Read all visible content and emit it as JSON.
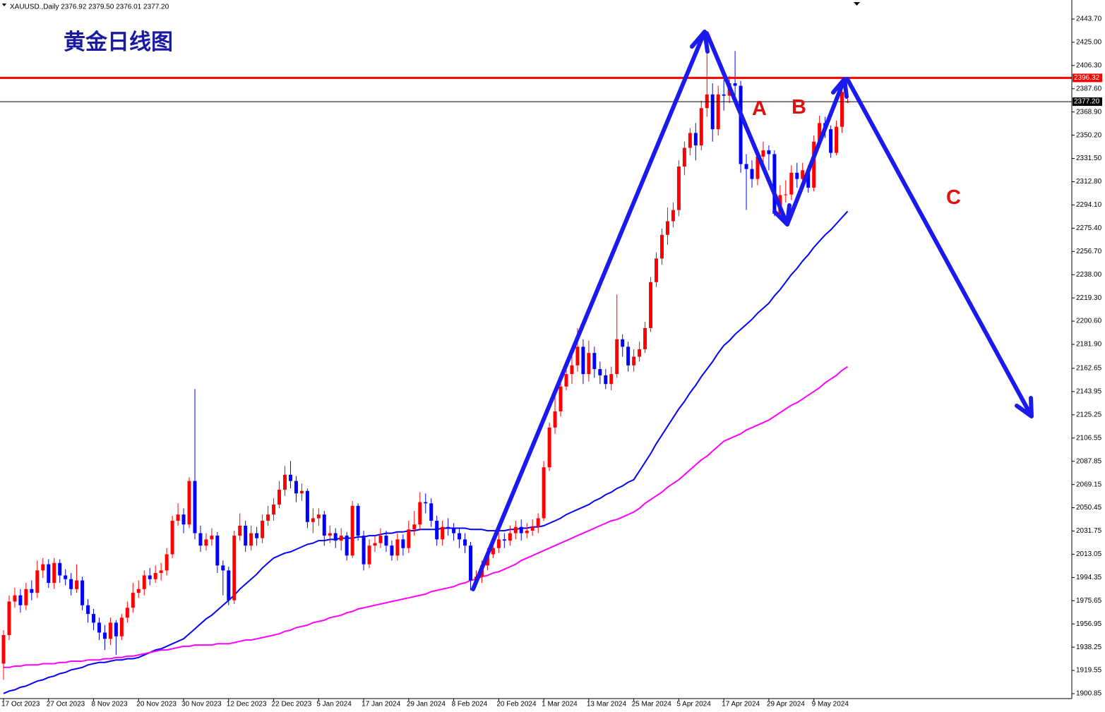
{
  "chart_data": {
    "type": "candlestick",
    "title": "黄金日线图",
    "header": "XAUUSD.,Daily  2376.92 2379.50 2376.01 2377.20",
    "annotations": [
      "A",
      "B",
      "C"
    ],
    "up_color": "#ff0000",
    "down_color": "#0000ff",
    "ylim": [
      1896.9,
      2459.0
    ],
    "yticks": [
      {
        "value": 2443.7,
        "label": "2443.70"
      },
      {
        "value": 2425,
        "label": "2425.00"
      },
      {
        "value": 2406.3,
        "label": "2406.30"
      },
      {
        "value": 2387.6,
        "label": "2387.60"
      },
      {
        "value": 2368.9,
        "label": "2368.90"
      },
      {
        "value": 2350.2,
        "label": "2350.20"
      },
      {
        "value": 2331.5,
        "label": "2331.50"
      },
      {
        "value": 2312.8,
        "label": "2312.80"
      },
      {
        "value": 2294.1,
        "label": "2294.10"
      },
      {
        "value": 2275.4,
        "label": "2275.40"
      },
      {
        "value": 2256.7,
        "label": "2256.70"
      },
      {
        "value": 2238,
        "label": "2238.00"
      },
      {
        "value": 2219.3,
        "label": "2219.30"
      },
      {
        "value": 2200.6,
        "label": "2200.60"
      },
      {
        "value": 2181.9,
        "label": "2181.90"
      },
      2162.65,
      2143.95,
      2125.25,
      2106.55,
      2087.85,
      2069.15,
      2050.45,
      2031.75,
      2013.05,
      1994.35,
      1975.65,
      1956.95,
      1938.25,
      1919.55,
      1900.85
    ],
    "levels": [
      {
        "value": 2396.32,
        "label": "2396.32",
        "color": "#ff0000",
        "weight": "bold"
      },
      {
        "value": 2377.2,
        "label": "2377.20",
        "color": "#000000",
        "weight": "normal"
      }
    ],
    "categories": [
      "17 Oct 2023",
      null,
      null,
      null,
      null,
      null,
      null,
      null,
      "27 Oct 2023",
      null,
      null,
      null,
      null,
      null,
      null,
      null,
      "8 Nov 2023",
      null,
      null,
      null,
      null,
      null,
      null,
      null,
      "20 Nov 2023",
      null,
      null,
      null,
      null,
      null,
      null,
      null,
      "30 Nov 2023",
      null,
      null,
      null,
      null,
      null,
      null,
      null,
      "12 Dec 2023",
      null,
      null,
      null,
      null,
      null,
      null,
      null,
      "22 Dec 2023",
      null,
      null,
      null,
      null,
      null,
      null,
      null,
      "5 Jan 2024",
      null,
      null,
      null,
      null,
      null,
      null,
      null,
      "17 Jan 2024",
      null,
      null,
      null,
      null,
      null,
      null,
      null,
      "29 Jan 2024",
      null,
      null,
      null,
      null,
      null,
      null,
      null,
      "8 Feb 2024",
      null,
      null,
      null,
      null,
      null,
      null,
      null,
      "20 Feb 2024",
      null,
      null,
      null,
      null,
      null,
      null,
      null,
      "1 Mar 2024",
      null,
      null,
      null,
      null,
      null,
      null,
      null,
      "13 Mar 2024",
      null,
      null,
      null,
      null,
      null,
      null,
      null,
      "25 Mar 2024",
      null,
      null,
      null,
      null,
      null,
      null,
      null,
      "5 Apr 2024",
      null,
      null,
      null,
      null,
      null,
      null,
      null,
      "17 Apr 2024",
      null,
      null,
      null,
      null,
      null,
      null,
      null,
      "29 Apr 2024",
      null,
      null,
      null,
      null,
      null,
      null,
      null,
      "9 May 2024",
      null,
      null,
      null,
      null,
      null,
      null
    ],
    "open": [
      1925,
      1948,
      1975,
      1980,
      1972,
      1985,
      1982,
      2000,
      2005,
      1990,
      2006,
      1996,
      1993,
      1985,
      1992,
      1972,
      1965,
      1958,
      1950,
      1945,
      1958,
      1947,
      1962,
      1970,
      1982,
      1985,
      1996,
      1993,
      1998,
      2000,
      2013,
      2040,
      2045,
      2037,
      2072,
      2030,
      2020,
      2025,
      2028,
      2004,
      2000,
      1976,
      2028,
      2036,
      2020,
      2030,
      2026,
      2040,
      2045,
      2053,
      2065,
      2077,
      2072,
      2062,
      2064,
      2039,
      2042,
      2045,
      2028,
      2030,
      2024,
      2028,
      2012,
      2052,
      2028,
      2005,
      2020,
      2022,
      2028,
      2020,
      2012,
      2025,
      2018,
      2033,
      2037,
      2055,
      2054,
      2040,
      2025,
      2035,
      2034,
      2030,
      2025,
      2020,
      1992,
      1995,
      2004,
      2013,
      2018,
      2025,
      2024,
      2030,
      2035,
      2030,
      2032,
      2035,
      2042,
      2083,
      2115,
      2128,
      2148,
      2158,
      2165,
      2180,
      2158,
      2175,
      2162,
      2157,
      2150,
      2158,
      2186,
      2180,
      2165,
      2172,
      2178,
      2195,
      2232,
      2251,
      2270,
      2281,
      2290,
      2325,
      2340,
      2352,
      2342,
      2372,
      2383,
      2355,
      2383,
      2382,
      2392,
      2390,
      2327,
      2323,
      2315,
      2333,
      2338,
      2335,
      2287,
      2302,
      2302.5,
      2320,
      2315,
      2322,
      2308,
      2345,
      2360,
      2355,
      2336,
      2357,
      2376.92
    ],
    "high": [
      1952,
      1980,
      1986,
      1985,
      1990,
      1992,
      2008,
      2010,
      2009,
      2010,
      2009,
      2001,
      1998,
      2005,
      1995,
      1977,
      1969,
      1962,
      1956,
      1962,
      1960,
      1965,
      1975,
      1990,
      1992,
      2000,
      2002,
      2004,
      2006,
      2018,
      2044,
      2054,
      2050,
      2075,
      2146,
      2036,
      2030,
      2034,
      2031,
      2008,
      2003,
      2032,
      2046,
      2040,
      2036,
      2035,
      2045,
      2052,
      2058,
      2072,
      2084,
      2088,
      2076,
      2070,
      2066,
      2050,
      2050,
      2048,
      2036,
      2034,
      2034,
      2031,
      2056,
      2054,
      2032,
      2025,
      2028,
      2034,
      2032,
      2024,
      2030,
      2029,
      2040,
      2048,
      2063,
      2062,
      2058,
      2044,
      2040,
      2042,
      2038,
      2034,
      2030,
      2023,
      2000,
      2008,
      2018,
      2024,
      2030,
      2030,
      2036,
      2040,
      2041,
      2038,
      2041,
      2046,
      2088,
      2119,
      2142,
      2152,
      2164,
      2178,
      2195,
      2186,
      2185,
      2180,
      2168,
      2162,
      2164,
      2222,
      2190,
      2184,
      2178,
      2184,
      2200,
      2236,
      2256,
      2275,
      2292,
      2296,
      2330,
      2345,
      2356,
      2360,
      2378,
      2431,
      2392,
      2390,
      2395,
      2398,
      2418,
      2394,
      2335,
      2330,
      2338,
      2345,
      2342,
      2338,
      2310,
      2314,
      2326,
      2328,
      2328,
      2326,
      2350,
      2366,
      2365,
      2358,
      2362,
      2392,
      2379.5
    ],
    "low": [
      1912,
      1944,
      1970,
      1966,
      1968,
      1976,
      1978,
      1994,
      1986,
      1985,
      1990,
      1988,
      1980,
      1982,
      1968,
      1958,
      1952,
      1944,
      1936,
      1940,
      1932,
      1944,
      1958,
      1966,
      1978,
      1980,
      1988,
      1990,
      1992,
      1996,
      2010,
      2036,
      2030,
      2034,
      2025,
      2015,
      2016,
      2020,
      1998,
      1980,
      1972,
      1973,
      2024,
      2015,
      2016,
      2020,
      2022,
      2036,
      2040,
      2050,
      2060,
      2066,
      2055,
      2056,
      2034,
      2030,
      2036,
      2020,
      2022,
      2018,
      2016,
      2008,
      2010,
      2024,
      2000,
      2002,
      2015,
      2018,
      2015,
      2008,
      2008,
      2012,
      2014,
      2028,
      2032,
      2046,
      2035,
      2020,
      2020,
      2028,
      2024,
      2018,
      2014,
      1984,
      1988,
      1990,
      2000,
      2010,
      2014,
      2018,
      2020,
      2025,
      2024,
      2026,
      2028,
      2030,
      2040,
      2080,
      2110,
      2124,
      2145,
      2150,
      2160,
      2150,
      2152,
      2155,
      2150,
      2146,
      2145,
      2155,
      2172,
      2160,
      2160,
      2168,
      2175,
      2192,
      2228,
      2246,
      2262,
      2276,
      2285,
      2318,
      2334,
      2330,
      2338,
      2365,
      2345,
      2350,
      2370,
      2376,
      2378,
      2320,
      2290,
      2308,
      2310,
      2325,
      2322,
      2285,
      2283,
      2296,
      2298,
      2308,
      2310,
      2304,
      2305,
      2340,
      2348,
      2332,
      2334,
      2352,
      2376.01
    ],
    "close": [
      1948,
      1975,
      1980,
      1972,
      1985,
      1982,
      2000,
      2005,
      1990,
      2006,
      1996,
      1993,
      1985,
      1992,
      1972,
      1965,
      1958,
      1950,
      1945,
      1958,
      1947,
      1962,
      1970,
      1982,
      1985,
      1996,
      1993,
      1998,
      2000,
      2013,
      2040,
      2045,
      2037,
      2072,
      2030,
      2020,
      2025,
      2028,
      2004,
      2000,
      1976,
      2028,
      2036,
      2020,
      2030,
      2026,
      2040,
      2045,
      2053,
      2065,
      2077,
      2072,
      2062,
      2064,
      2039,
      2042,
      2045,
      2028,
      2030,
      2024,
      2028,
      2012,
      2052,
      2028,
      2005,
      2020,
      2022,
      2028,
      2020,
      2012,
      2025,
      2018,
      2033,
      2037,
      2055,
      2054,
      2040,
      2025,
      2035,
      2034,
      2030,
      2025,
      2020,
      1992,
      1995,
      2004,
      2013,
      2018,
      2025,
      2024,
      2030,
      2035,
      2030,
      2032,
      2035,
      2042,
      2083,
      2115,
      2128,
      2148,
      2158,
      2165,
      2180,
      2158,
      2175,
      2162,
      2157,
      2150,
      2158,
      2186,
      2180,
      2165,
      2172,
      2178,
      2195,
      2232,
      2251,
      2270,
      2281,
      2290,
      2325,
      2340,
      2352,
      2342,
      2372,
      2383,
      2355,
      2383,
      2382,
      2392,
      2390,
      2327,
      2323,
      2315,
      2333,
      2338,
      2335,
      2287,
      2302,
      2302.5,
      2320,
      2315,
      2322,
      2308,
      2345,
      2360,
      2355,
      2336,
      2357,
      2385,
      2377.2
    ],
    "overlays": [
      {
        "color": "#0000ff",
        "values": [
          1901,
          1903,
          1904,
          1906,
          1907,
          1909,
          1911,
          1912,
          1914,
          1915,
          1917,
          1918,
          1920,
          1921,
          1922,
          1924,
          1925,
          1926,
          1926,
          1927,
          1928,
          1928,
          1929,
          1929,
          1930,
          1932,
          1934,
          1936,
          1937,
          1939,
          1941,
          1943,
          1945,
          1949,
          1953,
          1957,
          1961,
          1964,
          1968,
          1972,
          1976,
          1980,
          1985,
          1989,
          1993,
          1997,
          2002,
          2006,
          2010,
          2012,
          2014,
          2015,
          2017,
          2019,
          2021,
          2022,
          2024,
          2024,
          2025,
          2025,
          2026,
          2026,
          2026,
          2027,
          2027,
          2028,
          2028,
          2029,
          2030,
          2030,
          2031,
          2031,
          2032,
          2032,
          2033,
          2033,
          2033,
          2033,
          2034,
          2034,
          2034,
          2034,
          2034,
          2033,
          2033,
          2033,
          2032,
          2032,
          2032,
          2032,
          2033,
          2033,
          2034,
          2034,
          2035,
          2035,
          2036,
          2038,
          2040,
          2042,
          2045,
          2047,
          2049,
          2051,
          2053,
          2056,
          2058,
          2061,
          2063,
          2066,
          2068,
          2071,
          2073,
          2080,
          2087,
          2094,
          2102,
          2109,
          2116,
          2123,
          2130,
          2136,
          2143,
          2149,
          2156,
          2162,
          2168,
          2175,
          2181,
          2185,
          2190,
          2194,
          2198,
          2202,
          2207,
          2211,
          2215,
          2221,
          2226,
          2232,
          2238,
          2243,
          2249,
          2254,
          2260,
          2265,
          2270,
          2274,
          2279,
          2284,
          2289
        ]
      },
      {
        "color": "#ff00ff",
        "values": [
          1922,
          1922,
          1923,
          1923,
          1924,
          1924,
          1924,
          1925,
          1925,
          1925,
          1926,
          1926,
          1927,
          1927,
          1927,
          1928,
          1928,
          1928,
          1929,
          1929,
          1930,
          1930,
          1931,
          1931,
          1932,
          1933,
          1934,
          1935,
          1936,
          1936,
          1937,
          1938,
          1939,
          1939,
          1940,
          1940,
          1940,
          1940,
          1941,
          1941,
          1941,
          1942,
          1943,
          1944,
          1944,
          1945,
          1946,
          1947,
          1948,
          1949,
          1951,
          1952,
          1954,
          1955,
          1956,
          1958,
          1959,
          1960,
          1962,
          1963,
          1964,
          1966,
          1967,
          1969,
          1970,
          1971,
          1972,
          1973,
          1974,
          1975,
          1976,
          1977,
          1978,
          1979,
          1980,
          1981,
          1983,
          1984,
          1985,
          1986,
          1987,
          1989,
          1990,
          1992,
          1993,
          1995,
          1996,
          1998,
          1999,
          2001,
          2003,
          2005,
          2008,
          2010,
          2012,
          2014,
          2016,
          2018,
          2020,
          2022,
          2024,
          2026,
          2028,
          2030,
          2032,
          2034,
          2036,
          2038,
          2040,
          2041,
          2043,
          2045,
          2047,
          2050,
          2054,
          2057,
          2060,
          2063,
          2067,
          2070,
          2073,
          2077,
          2081,
          2085,
          2089,
          2092,
          2096,
          2100,
          2104,
          2106,
          2108,
          2110,
          2113,
          2115,
          2117,
          2119,
          2121,
          2124,
          2127,
          2130,
          2133,
          2135,
          2138,
          2141,
          2144,
          2147,
          2151,
          2154,
          2157,
          2161,
          2164
        ]
      }
    ]
  }
}
